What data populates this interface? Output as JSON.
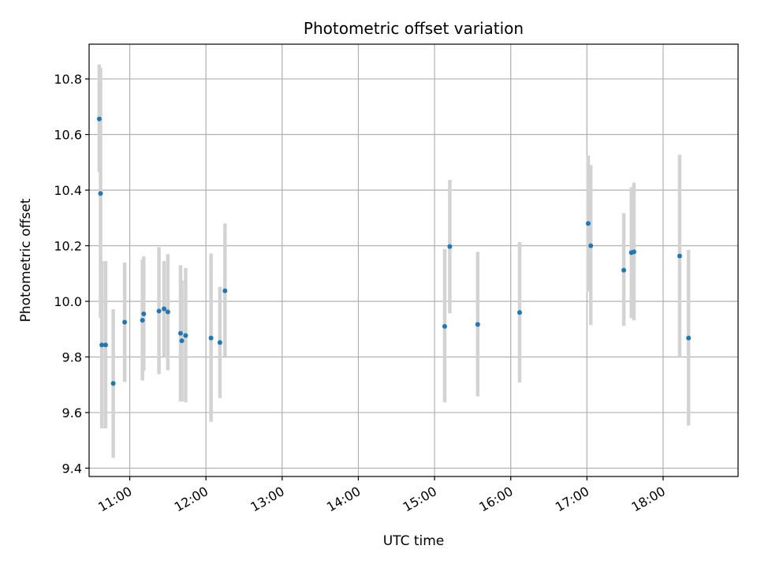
{
  "chart_data": {
    "type": "scatter",
    "title": "Photometric offset variation",
    "xlabel": "UTC time",
    "ylabel": "Photometric offset",
    "xlim": [
      "10:28",
      "18:59"
    ],
    "ylim": [
      9.37,
      10.925
    ],
    "grid": true,
    "xticks": [
      "11:00",
      "12:00",
      "13:00",
      "14:00",
      "15:00",
      "16:00",
      "17:00",
      "18:00"
    ],
    "yticks": [
      "9.4",
      "9.6",
      "9.8",
      "10.0",
      "10.2",
      "10.4",
      "10.6",
      "10.8"
    ],
    "colors": {
      "point": "#1f77b4",
      "error_bar": "#d3d3d3",
      "grid": "#b0b0b0"
    },
    "series": [
      {
        "points": [
          {
            "x": "10:36",
            "y": 10.656,
            "ylow": 10.465,
            "yhigh": 10.852
          },
          {
            "x": "10:37",
            "y": 10.388,
            "ylow": 9.94,
            "yhigh": 10.84
          },
          {
            "x": "10:38",
            "y": 9.843,
            "ylow": 9.543,
            "yhigh": 10.145
          },
          {
            "x": "10:41",
            "y": 9.843,
            "ylow": 9.543,
            "yhigh": 10.145
          },
          {
            "x": "10:47",
            "y": 9.705,
            "ylow": 9.437,
            "yhigh": 9.972
          },
          {
            "x": "10:56",
            "y": 9.925,
            "ylow": 9.71,
            "yhigh": 10.14
          },
          {
            "x": "11:10",
            "y": 9.932,
            "ylow": 9.715,
            "yhigh": 10.15
          },
          {
            "x": "11:11",
            "y": 9.955,
            "ylow": 9.75,
            "yhigh": 10.162
          },
          {
            "x": "11:23",
            "y": 9.965,
            "ylow": 9.738,
            "yhigh": 10.195
          },
          {
            "x": "11:27",
            "y": 9.973,
            "ylow": 9.8,
            "yhigh": 10.145
          },
          {
            "x": "11:30",
            "y": 9.962,
            "ylow": 9.752,
            "yhigh": 10.17
          },
          {
            "x": "11:40",
            "y": 9.885,
            "ylow": 9.64,
            "yhigh": 10.13
          },
          {
            "x": "11:41",
            "y": 9.858,
            "ylow": 9.64,
            "yhigh": 10.075
          },
          {
            "x": "11:44",
            "y": 9.877,
            "ylow": 9.637,
            "yhigh": 10.12
          },
          {
            "x": "12:04",
            "y": 9.868,
            "ylow": 9.567,
            "yhigh": 10.172
          },
          {
            "x": "12:11",
            "y": 9.852,
            "ylow": 9.652,
            "yhigh": 10.052
          },
          {
            "x": "12:15",
            "y": 10.038,
            "ylow": 9.802,
            "yhigh": 10.28
          },
          {
            "x": "15:08",
            "y": 9.91,
            "ylow": 9.637,
            "yhigh": 10.188
          },
          {
            "x": "15:12",
            "y": 10.197,
            "ylow": 9.957,
            "yhigh": 10.437
          },
          {
            "x": "15:34",
            "y": 9.917,
            "ylow": 9.658,
            "yhigh": 10.178
          },
          {
            "x": "16:07",
            "y": 9.96,
            "ylow": 9.708,
            "yhigh": 10.213
          },
          {
            "x": "17:01",
            "y": 10.28,
            "ylow": 10.035,
            "yhigh": 10.525
          },
          {
            "x": "17:03",
            "y": 10.2,
            "ylow": 9.915,
            "yhigh": 10.49
          },
          {
            "x": "17:29",
            "y": 10.112,
            "ylow": 9.912,
            "yhigh": 10.317
          },
          {
            "x": "17:35",
            "y": 10.175,
            "ylow": 9.94,
            "yhigh": 10.41
          },
          {
            "x": "17:37",
            "y": 10.178,
            "ylow": 9.932,
            "yhigh": 10.427
          },
          {
            "x": "18:13",
            "y": 10.163,
            "ylow": 9.8,
            "yhigh": 10.527
          },
          {
            "x": "18:20",
            "y": 9.868,
            "ylow": 9.553,
            "yhigh": 10.185
          }
        ]
      }
    ]
  }
}
